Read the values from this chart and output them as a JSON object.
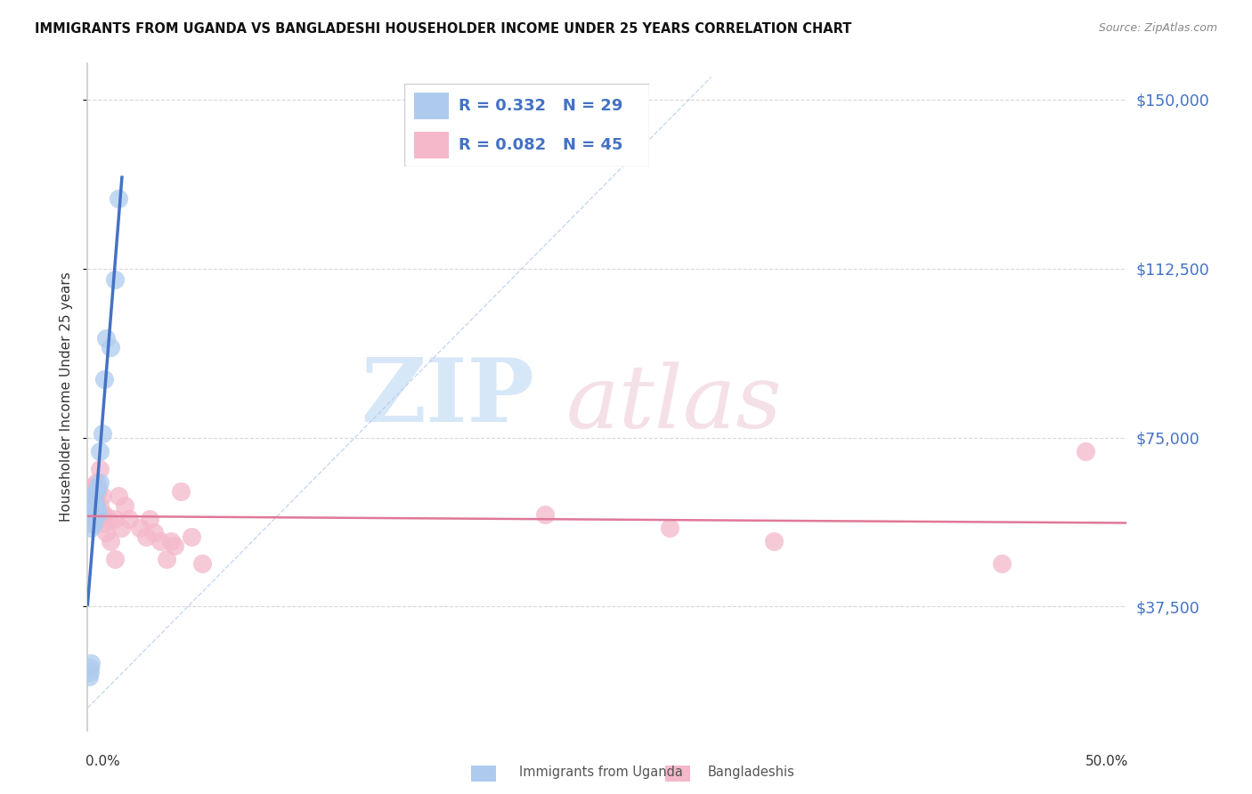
{
  "title": "IMMIGRANTS FROM UGANDA VS BANGLADESHI HOUSEHOLDER INCOME UNDER 25 YEARS CORRELATION CHART",
  "source": "Source: ZipAtlas.com",
  "ylabel": "Householder Income Under 25 years",
  "ytick_labels": [
    "$37,500",
    "$75,000",
    "$112,500",
    "$150,000"
  ],
  "ytick_values": [
    37500,
    75000,
    112500,
    150000
  ],
  "xlim": [
    0.0,
    0.5
  ],
  "ylim": [
    10000,
    158000
  ],
  "legend_r1": "R = 0.332",
  "legend_n1": "N = 29",
  "legend_r2": "R = 0.082",
  "legend_n2": "N = 45",
  "color_uganda": "#aecbee",
  "color_bang": "#f4b8ca",
  "color_line_uganda": "#4472c4",
  "color_line_bang": "#e07898",
  "color_legend_text": "#4472c4",
  "color_right_labels": "#4472c4",
  "uganda_x": [
    0.001,
    0.001,
    0.0012,
    0.0015,
    0.002,
    0.002,
    0.002,
    0.0025,
    0.003,
    0.003,
    0.003,
    0.003,
    0.004,
    0.004,
    0.0045,
    0.005,
    0.005,
    0.006,
    0.006,
    0.007,
    0.008,
    0.009,
    0.011,
    0.013,
    0.015,
    0.0008,
    0.001,
    0.0012,
    0.0015
  ],
  "uganda_y": [
    57000,
    59000,
    60000,
    55000,
    62000,
    60000,
    58000,
    56000,
    62000,
    60000,
    58000,
    56000,
    63000,
    60000,
    59000,
    64000,
    58000,
    72000,
    65000,
    76000,
    88000,
    97000,
    95000,
    110000,
    128000,
    22000,
    23000,
    24000,
    25000
  ],
  "bang_x": [
    0.001,
    0.001,
    0.0015,
    0.002,
    0.002,
    0.0025,
    0.003,
    0.003,
    0.003,
    0.004,
    0.004,
    0.004,
    0.005,
    0.005,
    0.006,
    0.006,
    0.007,
    0.007,
    0.008,
    0.008,
    0.009,
    0.01,
    0.011,
    0.013,
    0.013,
    0.015,
    0.016,
    0.018,
    0.02,
    0.025,
    0.028,
    0.03,
    0.032,
    0.035,
    0.038,
    0.04,
    0.042,
    0.045,
    0.05,
    0.055,
    0.22,
    0.28,
    0.33,
    0.44,
    0.48
  ],
  "bang_y": [
    60000,
    56000,
    63000,
    62000,
    59000,
    64000,
    61000,
    59000,
    57000,
    65000,
    62000,
    60000,
    63000,
    59000,
    68000,
    60000,
    62000,
    58000,
    58000,
    56000,
    54000,
    57000,
    52000,
    57000,
    48000,
    62000,
    55000,
    60000,
    57000,
    55000,
    53000,
    57000,
    54000,
    52000,
    48000,
    52000,
    51000,
    63000,
    53000,
    47000,
    58000,
    55000,
    52000,
    47000,
    72000
  ]
}
